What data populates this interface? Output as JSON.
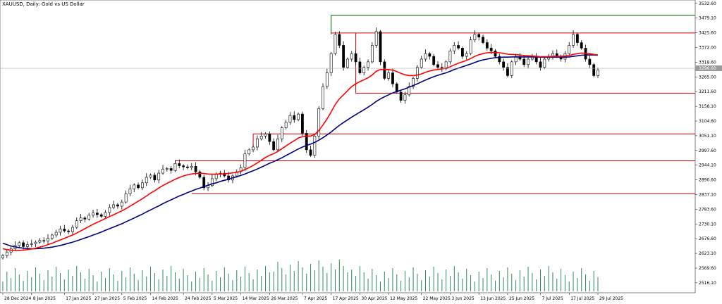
{
  "chart_data": {
    "type": "candlestick",
    "title": "XAUUSD, Daily:  Gold vs US Dollar",
    "ylim": [
      2480,
      3545
    ],
    "y_ticks": [
      "3532.60",
      "3479.10",
      "3425.60",
      "3372.00",
      "3318.60",
      "3265.00",
      "3211.60",
      "3158.10",
      "3104.60",
      "3051.10",
      "2997.60",
      "2944.10",
      "2890.60",
      "2837.10",
      "2783.60",
      "2730.10",
      "2676.60",
      "2623.10",
      "2569.60",
      "2516.10"
    ],
    "x_ticks": [
      "28 Dec 2024",
      "8 Jan 2025",
      "17 Jan 2025",
      "27 Jan 2025",
      "5 Feb 2025",
      "14 Feb 2025",
      "24 Feb 2025",
      "5 Mar 2025",
      "14 Mar 2025",
      "26 Mar 2025",
      "7 Apr 2025",
      "17 Apr 2025",
      "30 Apr 2025",
      "12 May 2025",
      "22 May 2025",
      "3 Jun 2025",
      "13 Jun 2025",
      "25 Jun 2025",
      "7 Jul 2025",
      "17 Jul 2025",
      "29 Jul 2025"
    ],
    "current_price": 3296.6,
    "ma_colors": {
      "fast": "#ff0000",
      "slow": "#000080"
    },
    "level_color": "#cc0000",
    "top_level_color": "#006400",
    "closes": [
      2615,
      2628,
      2640,
      2652,
      2662,
      2648,
      2655,
      2658,
      2664,
      2670,
      2668,
      2678,
      2690,
      2700,
      2712,
      2705,
      2702,
      2718,
      2742,
      2752,
      2748,
      2762,
      2770,
      2764,
      2758,
      2772,
      2790,
      2800,
      2795,
      2810,
      2840,
      2858,
      2872,
      2862,
      2880,
      2900,
      2908,
      2890,
      2915,
      2930,
      2932,
      2925,
      2950,
      2942,
      2938,
      2935,
      2940,
      2920,
      2900,
      2862,
      2870,
      2895,
      2912,
      2915,
      2905,
      2890,
      2905,
      2920,
      2935,
      2985,
      3000,
      3010,
      3040,
      3050,
      3058,
      3030,
      3000,
      3040,
      3080,
      3100,
      3125,
      3110,
      3130,
      3060,
      3000,
      2980,
      3050,
      3150,
      3230,
      3280,
      3350,
      3420,
      3380,
      3300,
      3330,
      3350,
      3320,
      3280,
      3300,
      3320,
      3380,
      3430,
      3320,
      3260,
      3280,
      3240,
      3210,
      3180,
      3200,
      3230,
      3260,
      3300,
      3330,
      3350,
      3340,
      3310,
      3300,
      3295,
      3320,
      3360,
      3380,
      3370,
      3340,
      3350,
      3400,
      3420,
      3410,
      3390,
      3370,
      3360,
      3340,
      3320,
      3300,
      3270,
      3320,
      3340,
      3330,
      3310,
      3330,
      3340,
      3320,
      3300,
      3330,
      3340,
      3350,
      3340,
      3330,
      3350,
      3380,
      3420,
      3390,
      3370,
      3330,
      3310,
      3270,
      3290
    ],
    "ma_fast": [
      2640,
      2637,
      2635,
      2634,
      2634,
      2635,
      2637,
      2639,
      2642,
      2646,
      2650,
      2655,
      2660,
      2666,
      2672,
      2678,
      2684,
      2690,
      2697,
      2705,
      2713,
      2721,
      2729,
      2736,
      2743,
      2750,
      2757,
      2764,
      2771,
      2778,
      2786,
      2795,
      2804,
      2813,
      2822,
      2832,
      2842,
      2851,
      2861,
      2870,
      2878,
      2885,
      2893,
      2899,
      2905,
      2909,
      2912,
      2914,
      2915,
      2914,
      2912,
      2911,
      2911,
      2912,
      2913,
      2914,
      2916,
      2918,
      2922,
      2928,
      2935,
      2943,
      2952,
      2962,
      2972,
      2980,
      2986,
      2994,
      3004,
      3014,
      3024,
      3033,
      3043,
      3048,
      3050,
      3050,
      3056,
      3070,
      3090,
      3112,
      3138,
      3165,
      3185,
      3200,
      3215,
      3230,
      3240,
      3248,
      3255,
      3262,
      3272,
      3286,
      3292,
      3292,
      3292,
      3290,
      3285,
      3278,
      3273,
      3270,
      3270,
      3272,
      3276,
      3282,
      3287,
      3290,
      3292,
      3294,
      3297,
      3302,
      3309,
      3315,
      3320,
      3325,
      3332,
      3340,
      3346,
      3350,
      3353,
      3354,
      3354,
      3353,
      3351,
      3348,
      3347,
      3346,
      3345,
      3343,
      3342,
      3341,
      3340,
      3339,
      3339,
      3339,
      3340,
      3340,
      3340,
      3341,
      3343,
      3347,
      3350,
      3352,
      3351,
      3350,
      3347,
      3345
    ],
    "ma_slow": [
      2660,
      2655,
      2650,
      2647,
      2644,
      2642,
      2641,
      2640,
      2640,
      2641,
      2642,
      2644,
      2646,
      2649,
      2652,
      2656,
      2660,
      2664,
      2669,
      2674,
      2679,
      2684,
      2690,
      2695,
      2701,
      2707,
      2713,
      2719,
      2725,
      2731,
      2738,
      2745,
      2752,
      2759,
      2766,
      2774,
      2781,
      2789,
      2796,
      2804,
      2811,
      2818,
      2825,
      2832,
      2838,
      2844,
      2850,
      2856,
      2861,
      2866,
      2871,
      2876,
      2880,
      2885,
      2889,
      2893,
      2898,
      2902,
      2907,
      2912,
      2918,
      2924,
      2930,
      2937,
      2944,
      2951,
      2957,
      2964,
      2971,
      2979,
      2987,
      2995,
      3003,
      3010,
      3016,
      3021,
      3027,
      3035,
      3044,
      3054,
      3065,
      3077,
      3089,
      3099,
      3109,
      3119,
      3128,
      3137,
      3146,
      3155,
      3165,
      3176,
      3185,
      3193,
      3200,
      3207,
      3212,
      3217,
      3222,
      3228,
      3234,
      3240,
      3247,
      3254,
      3260,
      3266,
      3271,
      3276,
      3280,
      3286,
      3292,
      3297,
      3302,
      3307,
      3312,
      3318,
      3323,
      3327,
      3330,
      3333,
      3335,
      3336,
      3337,
      3337,
      3338,
      3338,
      3338,
      3338,
      3338,
      3338,
      3338,
      3337,
      3337,
      3337,
      3337,
      3337,
      3337,
      3337,
      3338,
      3340,
      3342,
      3344,
      3345,
      3345,
      3345,
      3344
    ]
  }
}
